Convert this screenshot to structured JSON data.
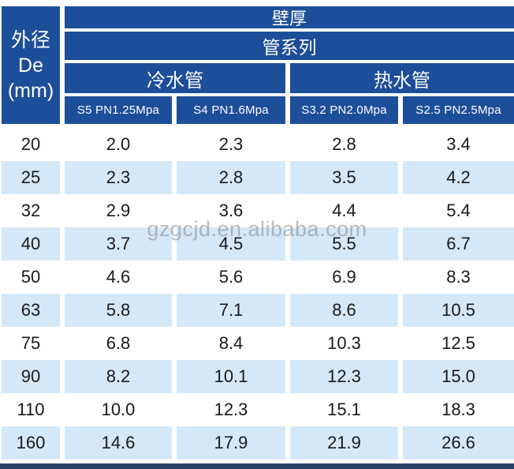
{
  "title": "壁厚",
  "watermark": "gzgcjd.en.alibaba.com",
  "colors": {
    "header_blue": "#1d4e9a",
    "row_alt_blue": "#d4e8f8",
    "row_white": "#ffffff",
    "footer_navy": "#2b4069",
    "data_text": "#1a1a1a",
    "header_text": "#ffffff"
  },
  "header": {
    "corner_line1": "外径",
    "corner_line2": "De",
    "corner_line3": "(mm)",
    "row1": "壁厚",
    "row2": "管系列",
    "group_cold": "冷水管",
    "group_hot": "热水管",
    "specs": [
      "S5 PN1.25Mpa",
      "S4 PN1.6Mpa",
      "S3.2 PN2.0Mpa",
      "S2.5 PN2.5Mpa"
    ]
  },
  "rows": [
    {
      "de": "20",
      "values": [
        "2.0",
        "2.3",
        "2.8",
        "3.4"
      ]
    },
    {
      "de": "25",
      "values": [
        "2.3",
        "2.8",
        "3.5",
        "4.2"
      ]
    },
    {
      "de": "32",
      "values": [
        "2.9",
        "3.6",
        "4.4",
        "5.4"
      ]
    },
    {
      "de": "40",
      "values": [
        "3.7",
        "4.5",
        "5.5",
        "6.7"
      ]
    },
    {
      "de": "50",
      "values": [
        "4.6",
        "5.6",
        "6.9",
        "8.3"
      ]
    },
    {
      "de": "63",
      "values": [
        "5.8",
        "7.1",
        "8.6",
        "10.5"
      ]
    },
    {
      "de": "75",
      "values": [
        "6.8",
        "8.4",
        "10.3",
        "12.5"
      ]
    },
    {
      "de": "90",
      "values": [
        "8.2",
        "10.1",
        "12.3",
        "15.0"
      ]
    },
    {
      "de": "110",
      "values": [
        "10.0",
        "12.3",
        "15.1",
        "18.3"
      ]
    },
    {
      "de": "160",
      "values": [
        "14.6",
        "17.9",
        "21.9",
        "26.6"
      ]
    }
  ],
  "chart_data": {
    "type": "table",
    "title": "壁厚 (wall thickness) by 管系列 (pipe series)",
    "row_header": "外径 De (mm)",
    "column_groups": [
      {
        "label": "冷水管",
        "columns": [
          "S5 PN1.25Mpa",
          "S4 PN1.6Mpa"
        ]
      },
      {
        "label": "热水管",
        "columns": [
          "S3.2 PN2.0Mpa",
          "S2.5 PN2.5Mpa"
        ]
      }
    ],
    "categories": [
      20,
      25,
      32,
      40,
      50,
      63,
      75,
      90,
      110,
      160
    ],
    "series": [
      {
        "name": "S5 PN1.25Mpa",
        "values": [
          2.0,
          2.3,
          2.9,
          3.7,
          4.6,
          5.8,
          6.8,
          8.2,
          10.0,
          14.6
        ]
      },
      {
        "name": "S4 PN1.6Mpa",
        "values": [
          2.3,
          2.8,
          3.6,
          4.5,
          5.6,
          7.1,
          8.4,
          10.1,
          12.3,
          17.9
        ]
      },
      {
        "name": "S3.2 PN2.0Mpa",
        "values": [
          2.8,
          3.5,
          4.4,
          5.5,
          6.9,
          8.6,
          10.3,
          12.3,
          15.1,
          21.9
        ]
      },
      {
        "name": "S2.5 PN2.5Mpa",
        "values": [
          3.4,
          4.2,
          5.4,
          6.7,
          8.3,
          10.5,
          12.5,
          15.0,
          18.3,
          26.6
        ]
      }
    ]
  }
}
